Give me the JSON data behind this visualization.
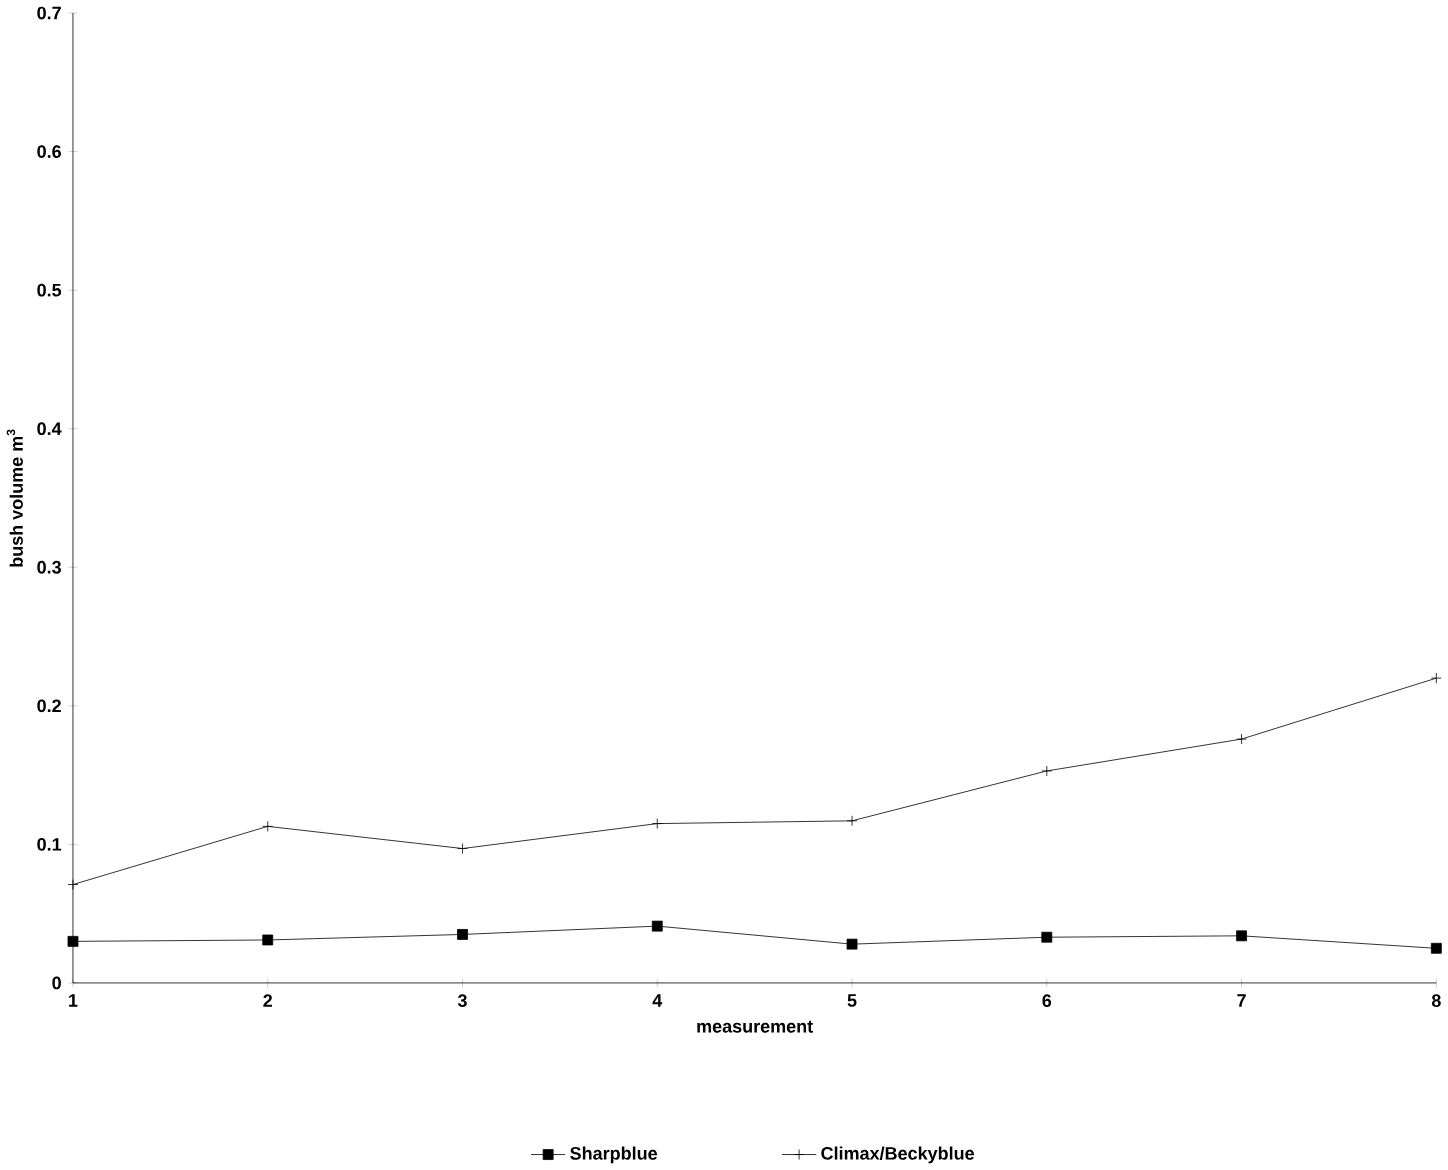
{
  "chart_data": {
    "type": "line",
    "xlabel": "measurement",
    "ylabel": "bush volume m$^{3}$",
    "x": [
      1,
      2,
      3,
      4,
      5,
      6,
      7,
      8
    ],
    "xlim": [
      1,
      8
    ],
    "xticks": [
      1,
      2,
      3,
      4,
      5,
      6,
      7,
      8
    ],
    "ylim": [
      0,
      0.7
    ],
    "yticks": [
      0,
      0.1,
      0.2,
      0.3,
      0.4,
      0.5,
      0.6,
      0.7
    ],
    "grid": false,
    "legend": "bottom",
    "line_style": "solid",
    "series": [
      {
        "name": "Sharpblue",
        "color": "#000000",
        "marker": "square",
        "values": [
          0.03,
          0.031,
          0.035,
          0.041,
          0.028,
          0.033,
          0.034,
          0.025
        ]
      },
      {
        "name": "Climax/Beckyblue",
        "color": "#000000",
        "marker": "cross",
        "values": [
          0.071,
          0.113,
          0.097,
          0.115,
          0.117,
          0.153,
          0.176,
          0.22
        ]
      }
    ]
  }
}
